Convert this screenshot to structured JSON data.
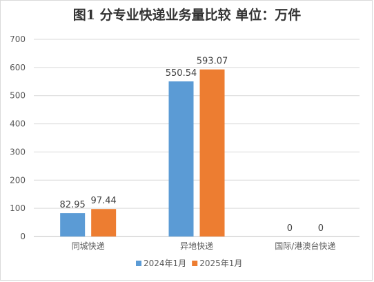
{
  "chart_data": {
    "type": "bar",
    "title": "图1  分专业快递业务量比较      单位：万件",
    "categories": [
      "同城快递",
      "异地快递",
      "国际/港澳台快递"
    ],
    "series": [
      {
        "name": "2024年1月",
        "values": [
          82.95,
          550.54,
          0
        ],
        "color": "#5B9BD5"
      },
      {
        "name": "2025年1月",
        "values": [
          97.44,
          593.07,
          0
        ],
        "color": "#ED7D31"
      }
    ],
    "ylim": [
      0,
      700
    ],
    "yticks": [
      0,
      100,
      200,
      300,
      400,
      500,
      600,
      700
    ],
    "grid": true,
    "legend": "bottom"
  }
}
